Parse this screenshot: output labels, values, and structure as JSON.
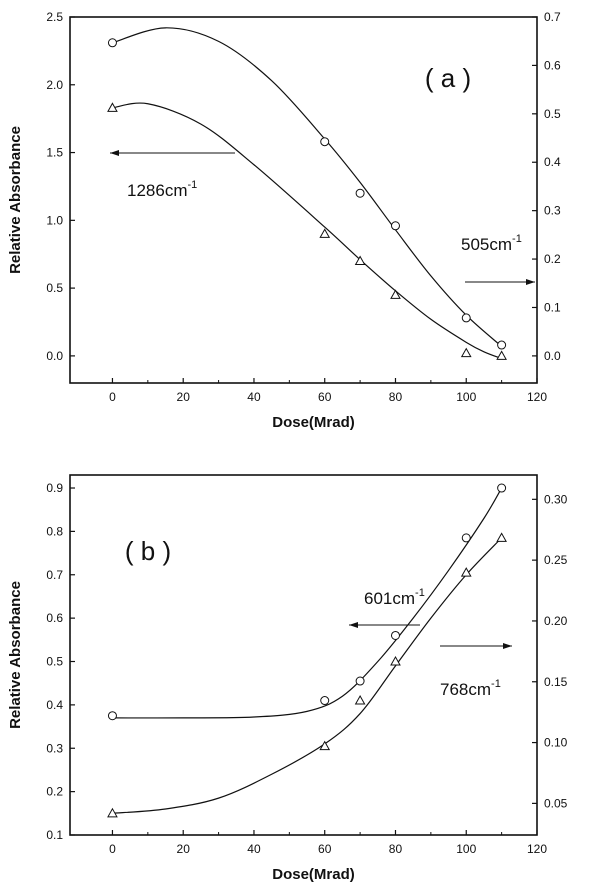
{
  "chart_data": [
    {
      "type": "line",
      "panel_label": "( a )",
      "xlabel": "Dose(Mrad)",
      "ylabel": "Relative Absorbance",
      "xlim": [
        -12,
        120
      ],
      "xticks": [
        "0",
        "20",
        "40",
        "60",
        "80",
        "100",
        "120"
      ],
      "ylim_left": [
        -0.2,
        2.5
      ],
      "yticks_left": [
        "0.0",
        "0.5",
        "1.0",
        "1.5",
        "2.0",
        "2.5"
      ],
      "ylim_right": [
        -0.056,
        0.7
      ],
      "yticks_right": [
        "0.0",
        "0.1",
        "0.2",
        "0.3",
        "0.4",
        "0.5",
        "0.6",
        "0.7"
      ],
      "annotations": [
        {
          "text": "1286cm",
          "sup": "-1",
          "arrow": "left",
          "axis": "left"
        },
        {
          "text": "505cm",
          "sup": "-1",
          "arrow": "right",
          "axis": "right"
        }
      ],
      "series": [
        {
          "marker": "circle",
          "x": [
            0,
            60,
            70,
            80,
            100,
            110
          ],
          "y": [
            2.31,
            1.58,
            1.2,
            0.96,
            0.28,
            0.08
          ],
          "fit": [
            [
              0,
              2.31
            ],
            [
              15,
              2.42
            ],
            [
              30,
              2.32
            ],
            [
              45,
              2.03
            ],
            [
              60,
              1.6
            ],
            [
              70,
              1.28
            ],
            [
              80,
              0.93
            ],
            [
              90,
              0.59
            ],
            [
              100,
              0.3
            ],
            [
              110,
              0.07
            ]
          ]
        },
        {
          "marker": "triangle",
          "x": [
            0,
            60,
            70,
            80,
            100,
            110
          ],
          "y": [
            1.83,
            0.9,
            0.7,
            0.45,
            0.02,
            0.0
          ],
          "fit": [
            [
              0,
              1.83
            ],
            [
              10,
              1.86
            ],
            [
              25,
              1.71
            ],
            [
              40,
              1.41
            ],
            [
              60,
              0.95
            ],
            [
              70,
              0.71
            ],
            [
              80,
              0.48
            ],
            [
              90,
              0.27
            ],
            [
              100,
              0.1
            ],
            [
              105,
              0.03
            ],
            [
              110,
              -0.02
            ]
          ]
        }
      ]
    },
    {
      "type": "line",
      "panel_label": "( b )",
      "xlabel": "Dose(Mrad)",
      "ylabel": "Relative Absorbance",
      "xlim": [
        -12,
        120
      ],
      "xticks": [
        "0",
        "20",
        "40",
        "60",
        "80",
        "100",
        "120"
      ],
      "ylim_left": [
        0.1,
        0.93
      ],
      "yticks_left": [
        "0.1",
        "0.2",
        "0.3",
        "0.4",
        "0.5",
        "0.6",
        "0.7",
        "0.8",
        "0.9"
      ],
      "ylim_right": [
        0.024,
        0.32
      ],
      "yticks_right": [
        "0.05",
        "0.10",
        "0.15",
        "0.20",
        "0.25",
        "0.30"
      ],
      "annotations": [
        {
          "text": "601cm",
          "sup": "-1",
          "arrow": "left",
          "axis": "left"
        },
        {
          "text": "768cm",
          "sup": "-1",
          "arrow": "right",
          "axis": "right"
        }
      ],
      "series": [
        {
          "marker": "circle",
          "x": [
            0,
            60,
            70,
            80,
            100,
            110
          ],
          "y": [
            0.375,
            0.41,
            0.455,
            0.56,
            0.785,
            0.9
          ],
          "fit": [
            [
              0,
              0.37
            ],
            [
              20,
              0.37
            ],
            [
              40,
              0.372
            ],
            [
              55,
              0.385
            ],
            [
              65,
              0.42
            ],
            [
              75,
              0.5
            ],
            [
              85,
              0.6
            ],
            [
              95,
              0.71
            ],
            [
              105,
              0.83
            ],
            [
              110,
              0.9
            ]
          ]
        },
        {
          "marker": "triangle",
          "x": [
            0,
            60,
            70,
            80,
            100,
            110
          ],
          "y": [
            0.15,
            0.305,
            0.41,
            0.5,
            0.705,
            0.785
          ],
          "fit": [
            [
              0,
              0.15
            ],
            [
              15,
              0.16
            ],
            [
              30,
              0.185
            ],
            [
              45,
              0.24
            ],
            [
              60,
              0.31
            ],
            [
              70,
              0.38
            ],
            [
              80,
              0.49
            ],
            [
              90,
              0.6
            ],
            [
              100,
              0.7
            ],
            [
              110,
              0.785
            ]
          ]
        }
      ]
    }
  ]
}
